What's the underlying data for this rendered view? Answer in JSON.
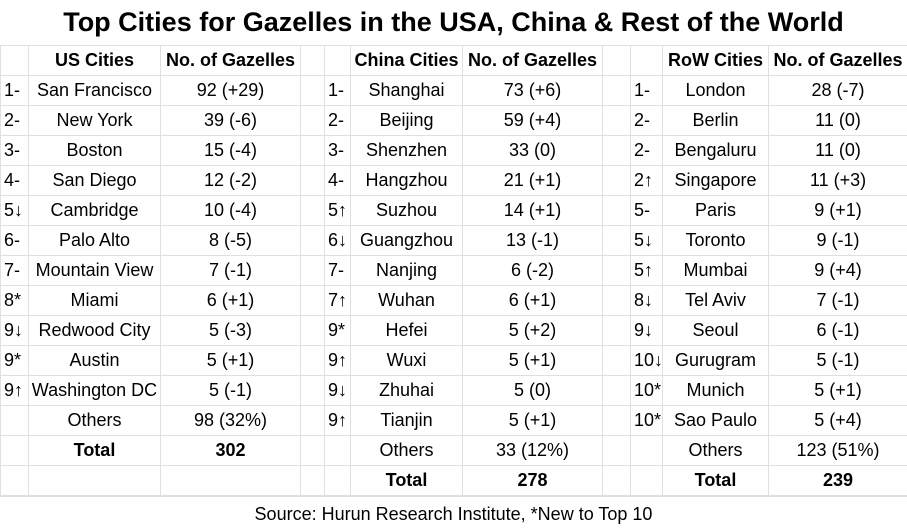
{
  "title": "Top Cities for Gazelles in the USA, China & Rest of the World",
  "groups": [
    {
      "header": {
        "city": "US Cities",
        "value": "No. of Gazelles"
      },
      "rows": [
        {
          "rank": "1-",
          "city": "San Francisco",
          "value": "92 (+29)"
        },
        {
          "rank": "2-",
          "city": "New York",
          "value": "39 (-6)"
        },
        {
          "rank": "3-",
          "city": "Boston",
          "value": "15 (-4)"
        },
        {
          "rank": "4-",
          "city": "San Diego",
          "value": "12 (-2)"
        },
        {
          "rank": "5↓",
          "city": "Cambridge",
          "value": "10 (-4)"
        },
        {
          "rank": "6-",
          "city": "Palo Alto",
          "value": "8 (-5)"
        },
        {
          "rank": "7-",
          "city": "Mountain View",
          "value": "7 (-1)"
        },
        {
          "rank": "8*",
          "city": "Miami",
          "value": "6 (+1)"
        },
        {
          "rank": "9↓",
          "city": "Redwood City",
          "value": "5 (-3)"
        },
        {
          "rank": "9*",
          "city": "Austin",
          "value": "5 (+1)"
        },
        {
          "rank": "9↑",
          "city": "Washington DC",
          "value": "5 (-1)"
        }
      ],
      "others": {
        "city": "Others",
        "value": "98 (32%)"
      },
      "total": {
        "city": "Total",
        "value": 302
      }
    },
    {
      "header": {
        "city": "China Cities",
        "value": "No. of Gazelles"
      },
      "rows": [
        {
          "rank": "1-",
          "city": "Shanghai",
          "value": "73 (+6)"
        },
        {
          "rank": "2-",
          "city": "Beijing",
          "value": "59 (+4)"
        },
        {
          "rank": "3-",
          "city": "Shenzhen",
          "value": "33 (0)"
        },
        {
          "rank": "4-",
          "city": "Hangzhou",
          "value": "21 (+1)"
        },
        {
          "rank": "5↑",
          "city": "Suzhou",
          "value": "14 (+1)"
        },
        {
          "rank": "6↓",
          "city": "Guangzhou",
          "value": "13 (-1)"
        },
        {
          "rank": "7-",
          "city": "Nanjing",
          "value": "6 (-2)"
        },
        {
          "rank": "7↑",
          "city": "Wuhan",
          "value": "6 (+1)"
        },
        {
          "rank": "9*",
          "city": "Hefei",
          "value": "5 (+2)"
        },
        {
          "rank": "9↑",
          "city": "Wuxi",
          "value": "5 (+1)"
        },
        {
          "rank": "9↓",
          "city": "Zhuhai",
          "value": "5 (0)"
        },
        {
          "rank": "9↑",
          "city": "Tianjin",
          "value": "5 (+1)"
        }
      ],
      "others": {
        "city": "Others",
        "value": "33 (12%)"
      },
      "total": {
        "city": "Total",
        "value": 278
      }
    },
    {
      "header": {
        "city": "RoW Cities",
        "value": "No. of Gazelles"
      },
      "rows": [
        {
          "rank": "1-",
          "city": "London",
          "value": "28 (-7)"
        },
        {
          "rank": "2-",
          "city": "Berlin",
          "value": "11 (0)"
        },
        {
          "rank": "2-",
          "city": "Bengaluru",
          "value": "11 (0)"
        },
        {
          "rank": "2↑",
          "city": "Singapore",
          "value": "11 (+3)"
        },
        {
          "rank": "5-",
          "city": "Paris",
          "value": "9 (+1)"
        },
        {
          "rank": "5↓",
          "city": "Toronto",
          "value": "9 (-1)"
        },
        {
          "rank": "5↑",
          "city": "Mumbai",
          "value": "9 (+4)"
        },
        {
          "rank": "8↓",
          "city": "Tel Aviv",
          "value": "7 (-1)"
        },
        {
          "rank": "9↓",
          "city": "Seoul",
          "value": "6 (-1)"
        },
        {
          "rank": "10↓",
          "city": "Gurugram",
          "value": "5 (-1)"
        },
        {
          "rank": "10*",
          "city": "Munich",
          "value": "5 (+1)"
        },
        {
          "rank": "10*",
          "city": "Sao Paulo",
          "value": "5 (+4)"
        }
      ],
      "others": {
        "city": "Others",
        "value": "123 (51%)"
      },
      "total": {
        "city": "Total",
        "value": 239
      }
    }
  ],
  "source": "Source: Hurun Research Institute,  *New to Top 10"
}
